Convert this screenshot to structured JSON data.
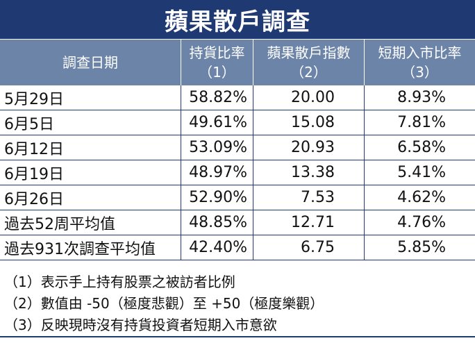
{
  "title": "蘋果散戶調查",
  "headers": [
    {
      "line1": "調查日期",
      "line2": ""
    },
    {
      "line1": "持貨比率",
      "line2": "（1）"
    },
    {
      "line1": "蘋果散戶指數",
      "line2": "（2）"
    },
    {
      "line1": "短期入市比率",
      "line2": "（3）"
    }
  ],
  "rows": [
    {
      "date": "5月29日",
      "holding": "58.82%",
      "index": "20.00",
      "entry": "8.93%"
    },
    {
      "date": "6月5日",
      "holding": "49.61%",
      "index": "15.08",
      "entry": "7.81%"
    },
    {
      "date": "6月12日",
      "holding": "53.09%",
      "index": "20.93",
      "entry": "6.58%"
    },
    {
      "date": "6月19日",
      "holding": "48.97%",
      "index": "13.38",
      "entry": "5.41%"
    },
    {
      "date": "6月26日",
      "holding": "52.90%",
      "index": "7.53",
      "entry": "4.62%"
    },
    {
      "date": "過去52周平均值",
      "holding": "48.85%",
      "index": "12.71",
      "entry": "4.76%"
    },
    {
      "date": "過去931次調查平均值",
      "holding": "42.40%",
      "index": "6.75",
      "entry": "5.85%"
    }
  ],
  "notes": [
    "（1）表示手上持有股票之被訪者比例",
    "（2）數值由 -50（極度悲觀）至 +50（極度樂觀）",
    "（3）反映現時沒有持貨投資者短期入市意欲"
  ],
  "colors": {
    "title_bg": "#1f3a73",
    "header_bg": "#6b84a8"
  }
}
